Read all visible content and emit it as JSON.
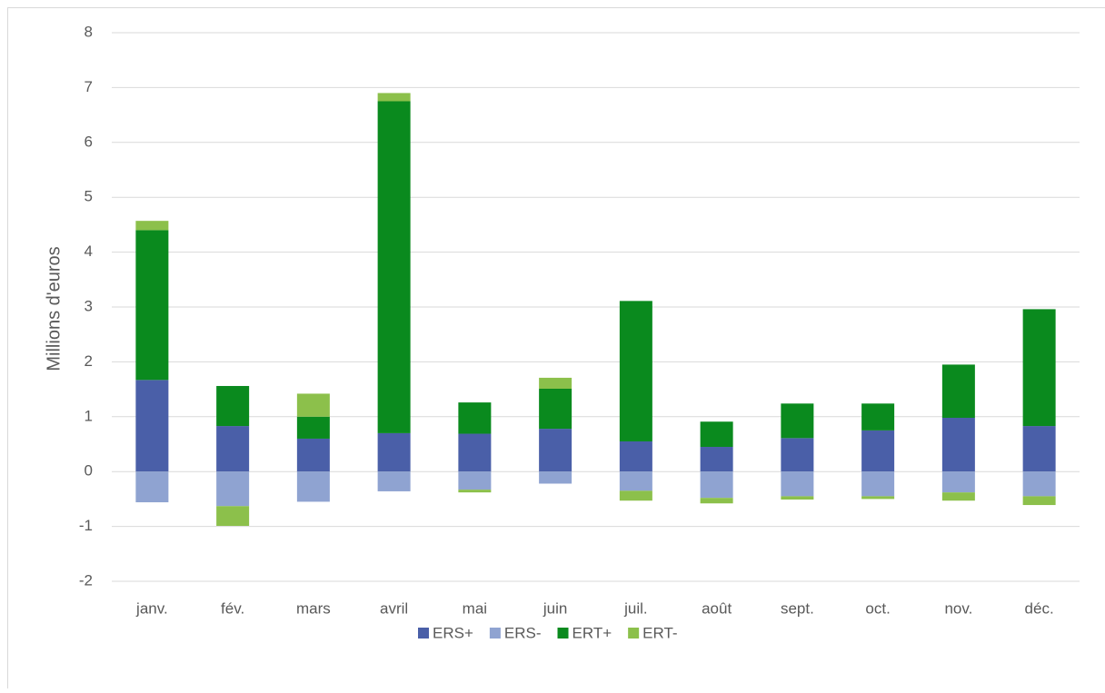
{
  "chart_data": {
    "type": "stacked_bar",
    "y_label": "Millions d'euros",
    "categories": [
      "janv.",
      "fév.",
      "mars",
      "avril",
      "mai",
      "juin",
      "juil.",
      "août",
      "sept.",
      "oct.",
      "nov.",
      "déc."
    ],
    "series": [
      {
        "name": "ERS+",
        "color": "#4a5fa8",
        "values": [
          1.67,
          0.83,
          0.6,
          0.7,
          0.69,
          0.78,
          0.55,
          0.45,
          0.61,
          0.75,
          0.98,
          0.83
        ]
      },
      {
        "name": "ERS-",
        "color": "#8fa3d1",
        "values": [
          -0.56,
          -0.63,
          -0.55,
          -0.36,
          -0.33,
          -0.22,
          -0.35,
          -0.48,
          -0.45,
          -0.45,
          -0.38,
          -0.45
        ]
      },
      {
        "name": "ERT+",
        "color": "#0a8a1e",
        "values": [
          2.73,
          0.73,
          0.4,
          6.05,
          0.57,
          0.73,
          2.56,
          0.46,
          0.63,
          0.49,
          0.97,
          2.13
        ]
      },
      {
        "name": "ERT-",
        "color": "#8cc04b",
        "values": [
          0.17,
          -0.36,
          0.42,
          0.15,
          -0.05,
          0.2,
          -0.18,
          -0.1,
          -0.06,
          -0.05,
          -0.15,
          -0.16
        ]
      }
    ],
    "ylim": [
      -2,
      8
    ],
    "yticks": [
      -2,
      -1,
      0,
      1,
      2,
      3,
      4,
      5,
      6,
      7,
      8
    ],
    "grid": true,
    "legend": "bottom"
  }
}
